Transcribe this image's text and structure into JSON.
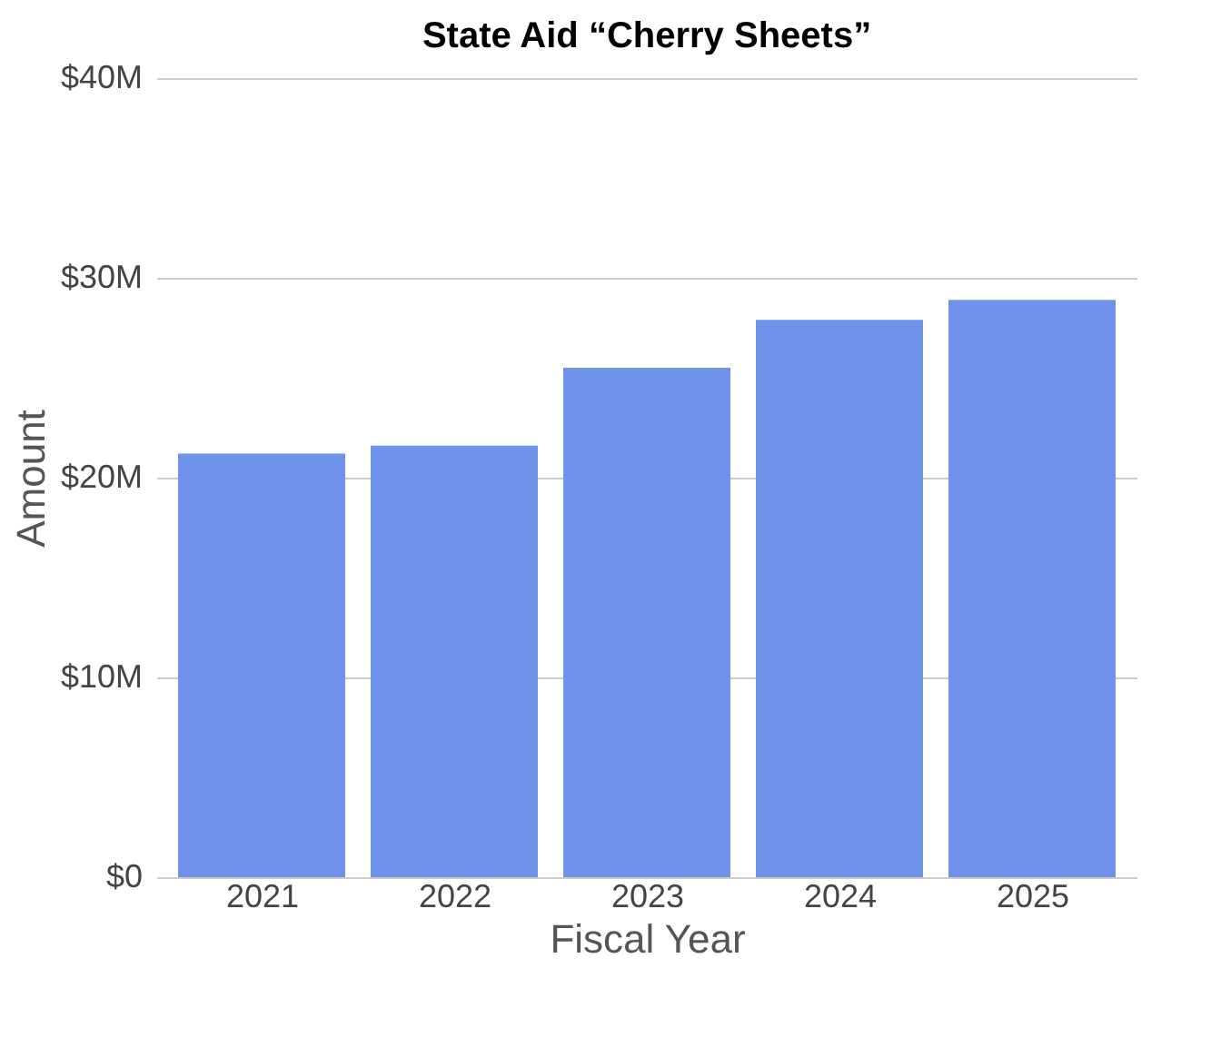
{
  "chart_data": {
    "type": "bar",
    "title": "State Aid “Cherry Sheets”",
    "xlabel": "Fiscal Year",
    "ylabel": "Amount",
    "categories": [
      "2021",
      "2022",
      "2023",
      "2024",
      "2025"
    ],
    "values": [
      21.2,
      21.6,
      25.5,
      27.9,
      28.9
    ],
    "color": "#6f93ea",
    "ylim": [
      0,
      40
    ],
    "yticks": [
      {
        "value": 0,
        "label": "$0"
      },
      {
        "value": 10,
        "label": "$10M"
      },
      {
        "value": 20,
        "label": "$20M"
      },
      {
        "value": 30,
        "label": "$30M"
      },
      {
        "value": 40,
        "label": "$40M"
      }
    ],
    "grid": "y"
  }
}
